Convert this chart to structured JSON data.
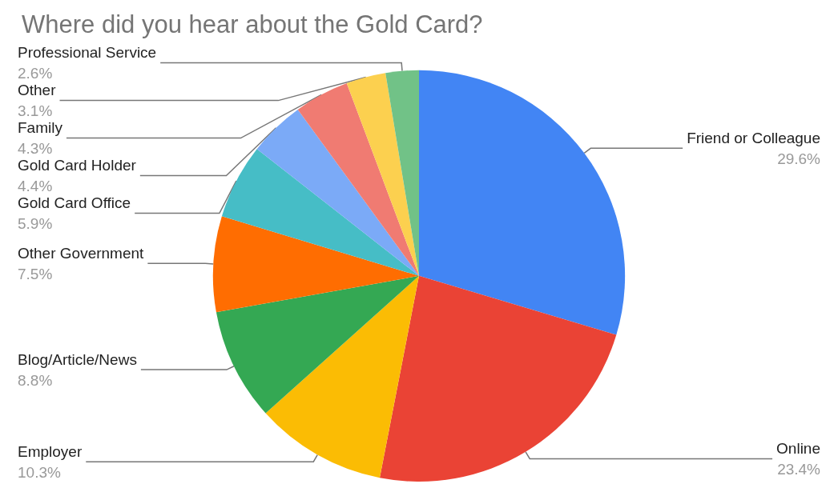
{
  "chart_data": {
    "type": "pie",
    "title": "Where did you hear about the Gold Card?",
    "categories": [
      "Friend or Colleague",
      "Online",
      "Employer",
      "Blog/Article/News",
      "Other Government",
      "Gold Card Office",
      "Gold Card Holder",
      "Family",
      "Other",
      "Professional Service"
    ],
    "values": [
      29.6,
      23.4,
      10.3,
      8.8,
      7.5,
      5.9,
      4.4,
      4.3,
      3.1,
      2.6
    ],
    "value_labels": [
      "29.6%",
      "23.4%",
      "10.3%",
      "8.8%",
      "7.5%",
      "5.9%",
      "4.4%",
      "4.3%",
      "3.1%",
      "2.6%"
    ],
    "colors": [
      "#4285f4",
      "#ea4335",
      "#fbbc04",
      "#34a853",
      "#ff6d01",
      "#46bdc6",
      "#7baaf7",
      "#f07b72",
      "#fcd04f",
      "#71c287"
    ]
  }
}
